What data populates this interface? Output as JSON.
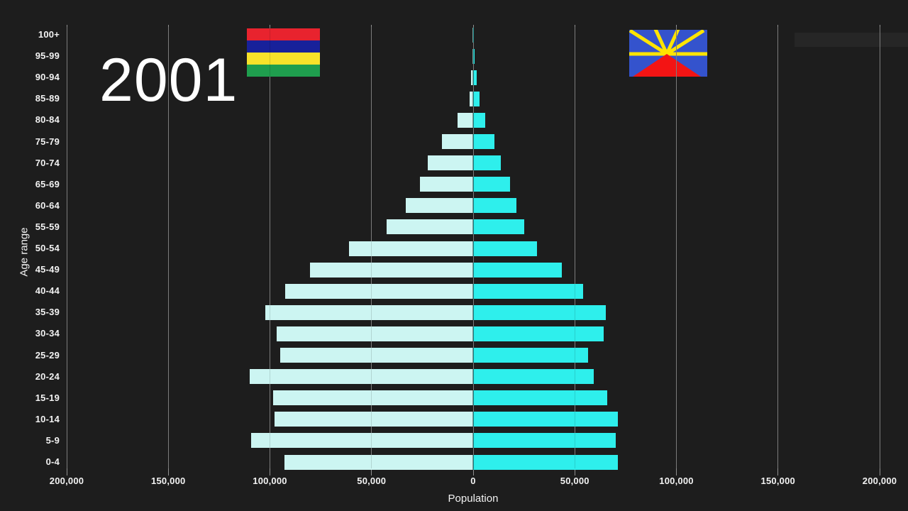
{
  "year": "2001",
  "icons": {
    "left_flag": "mauritius-flag",
    "right_flag": "reunion-flag"
  },
  "chart_data": {
    "type": "bar",
    "subtype": "population-pyramid",
    "title": "2001",
    "xlabel": "Population",
    "ylabel": "Age range",
    "xlim": [
      -200000,
      200000
    ],
    "grid": "vertical",
    "legend_position": "flags-above-chart",
    "categories_top_to_bottom": [
      "100+",
      "95-99",
      "90-94",
      "85-89",
      "80-84",
      "75-79",
      "70-74",
      "65-69",
      "60-64",
      "55-59",
      "50-54",
      "45-49",
      "40-44",
      "35-39",
      "30-34",
      "25-29",
      "20-24",
      "15-19",
      "10-14",
      "5-9",
      "0-4"
    ],
    "series": [
      {
        "name": "Mauritius",
        "side": "left",
        "values": [
          300,
          500,
          1000,
          1900,
          7700,
          15500,
          22400,
          26300,
          33300,
          42600,
          61000,
          80300,
          92400,
          102400,
          96600,
          95000,
          110000,
          98500,
          97800,
          109100,
          92900
        ]
      },
      {
        "name": "Réunion",
        "side": "right",
        "values": [
          200,
          600,
          1800,
          3100,
          5800,
          10500,
          13600,
          18300,
          21200,
          25000,
          31300,
          43800,
          54100,
          65100,
          64200,
          56500,
          59400,
          66000,
          71200,
          70100,
          71200
        ]
      }
    ],
    "x_ticks": [
      {
        "value": -200000,
        "label": "200,000"
      },
      {
        "value": -150000,
        "label": "150,000"
      },
      {
        "value": -100000,
        "label": "100,000"
      },
      {
        "value": -50000,
        "label": "50,000"
      },
      {
        "value": 0,
        "label": "0"
      },
      {
        "value": 50000,
        "label": "50,000"
      },
      {
        "value": 100000,
        "label": "100,000"
      },
      {
        "value": 150000,
        "label": "150,000"
      },
      {
        "value": 200000,
        "label": "200,000"
      }
    ]
  },
  "colors": {
    "background": "#1d1d1d",
    "gridline": "#8f8f8f",
    "text": "#f2f2f2",
    "left_bar": "#ccf5f2",
    "right_bar": "#2eefec",
    "mu_red": "#e8232e",
    "mu_blue": "#18219a",
    "mu_yellow": "#f8e22a",
    "mu_green": "#1f9e4e",
    "re_blue": "#3453cd",
    "re_yellow": "#ffe400",
    "re_red": "#f31414"
  }
}
